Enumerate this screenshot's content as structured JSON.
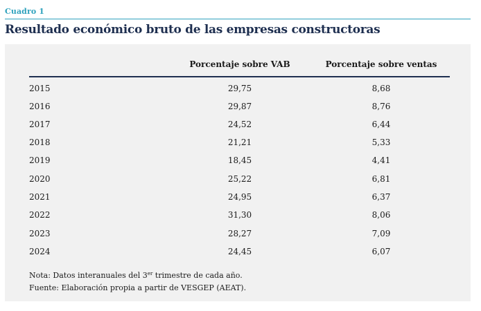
{
  "caption": {
    "label": "Cuadro 1",
    "title": "Resultado económico bruto de las empresas constructoras"
  },
  "table": {
    "headers": [
      "",
      "Porcentaje sobre VAB",
      "Porcentaje sobre ventas"
    ],
    "rows": [
      {
        "year": "2015",
        "vab": "29,75",
        "ventas": "8,68"
      },
      {
        "year": "2016",
        "vab": "29,87",
        "ventas": "8,76"
      },
      {
        "year": "2017",
        "vab": "24,52",
        "ventas": "6,44"
      },
      {
        "year": "2018",
        "vab": "21,21",
        "ventas": "5,33"
      },
      {
        "year": "2019",
        "vab": "18,45",
        "ventas": "4,41"
      },
      {
        "year": "2020",
        "vab": "25,22",
        "ventas": "6,81"
      },
      {
        "year": "2021",
        "vab": "24,95",
        "ventas": "6,37"
      },
      {
        "year": "2022",
        "vab": "31,30",
        "ventas": "8,06"
      },
      {
        "year": "2023",
        "vab": "28,27",
        "ventas": "7,09"
      },
      {
        "year": "2024",
        "vab": "24,45",
        "ventas": "6,07"
      }
    ]
  },
  "notes": {
    "nota_prefix": "Nota: Datos interanuales del 3",
    "nota_sup": "er",
    "nota_suffix": " trimestre de cada año.",
    "fuente": "Fuente: Elaboración propia a partir de VESGEP (AEAT)."
  },
  "colors": {
    "accent": "#2fa2bd",
    "title": "#1e2f50",
    "panel": "#f1f1f1"
  }
}
